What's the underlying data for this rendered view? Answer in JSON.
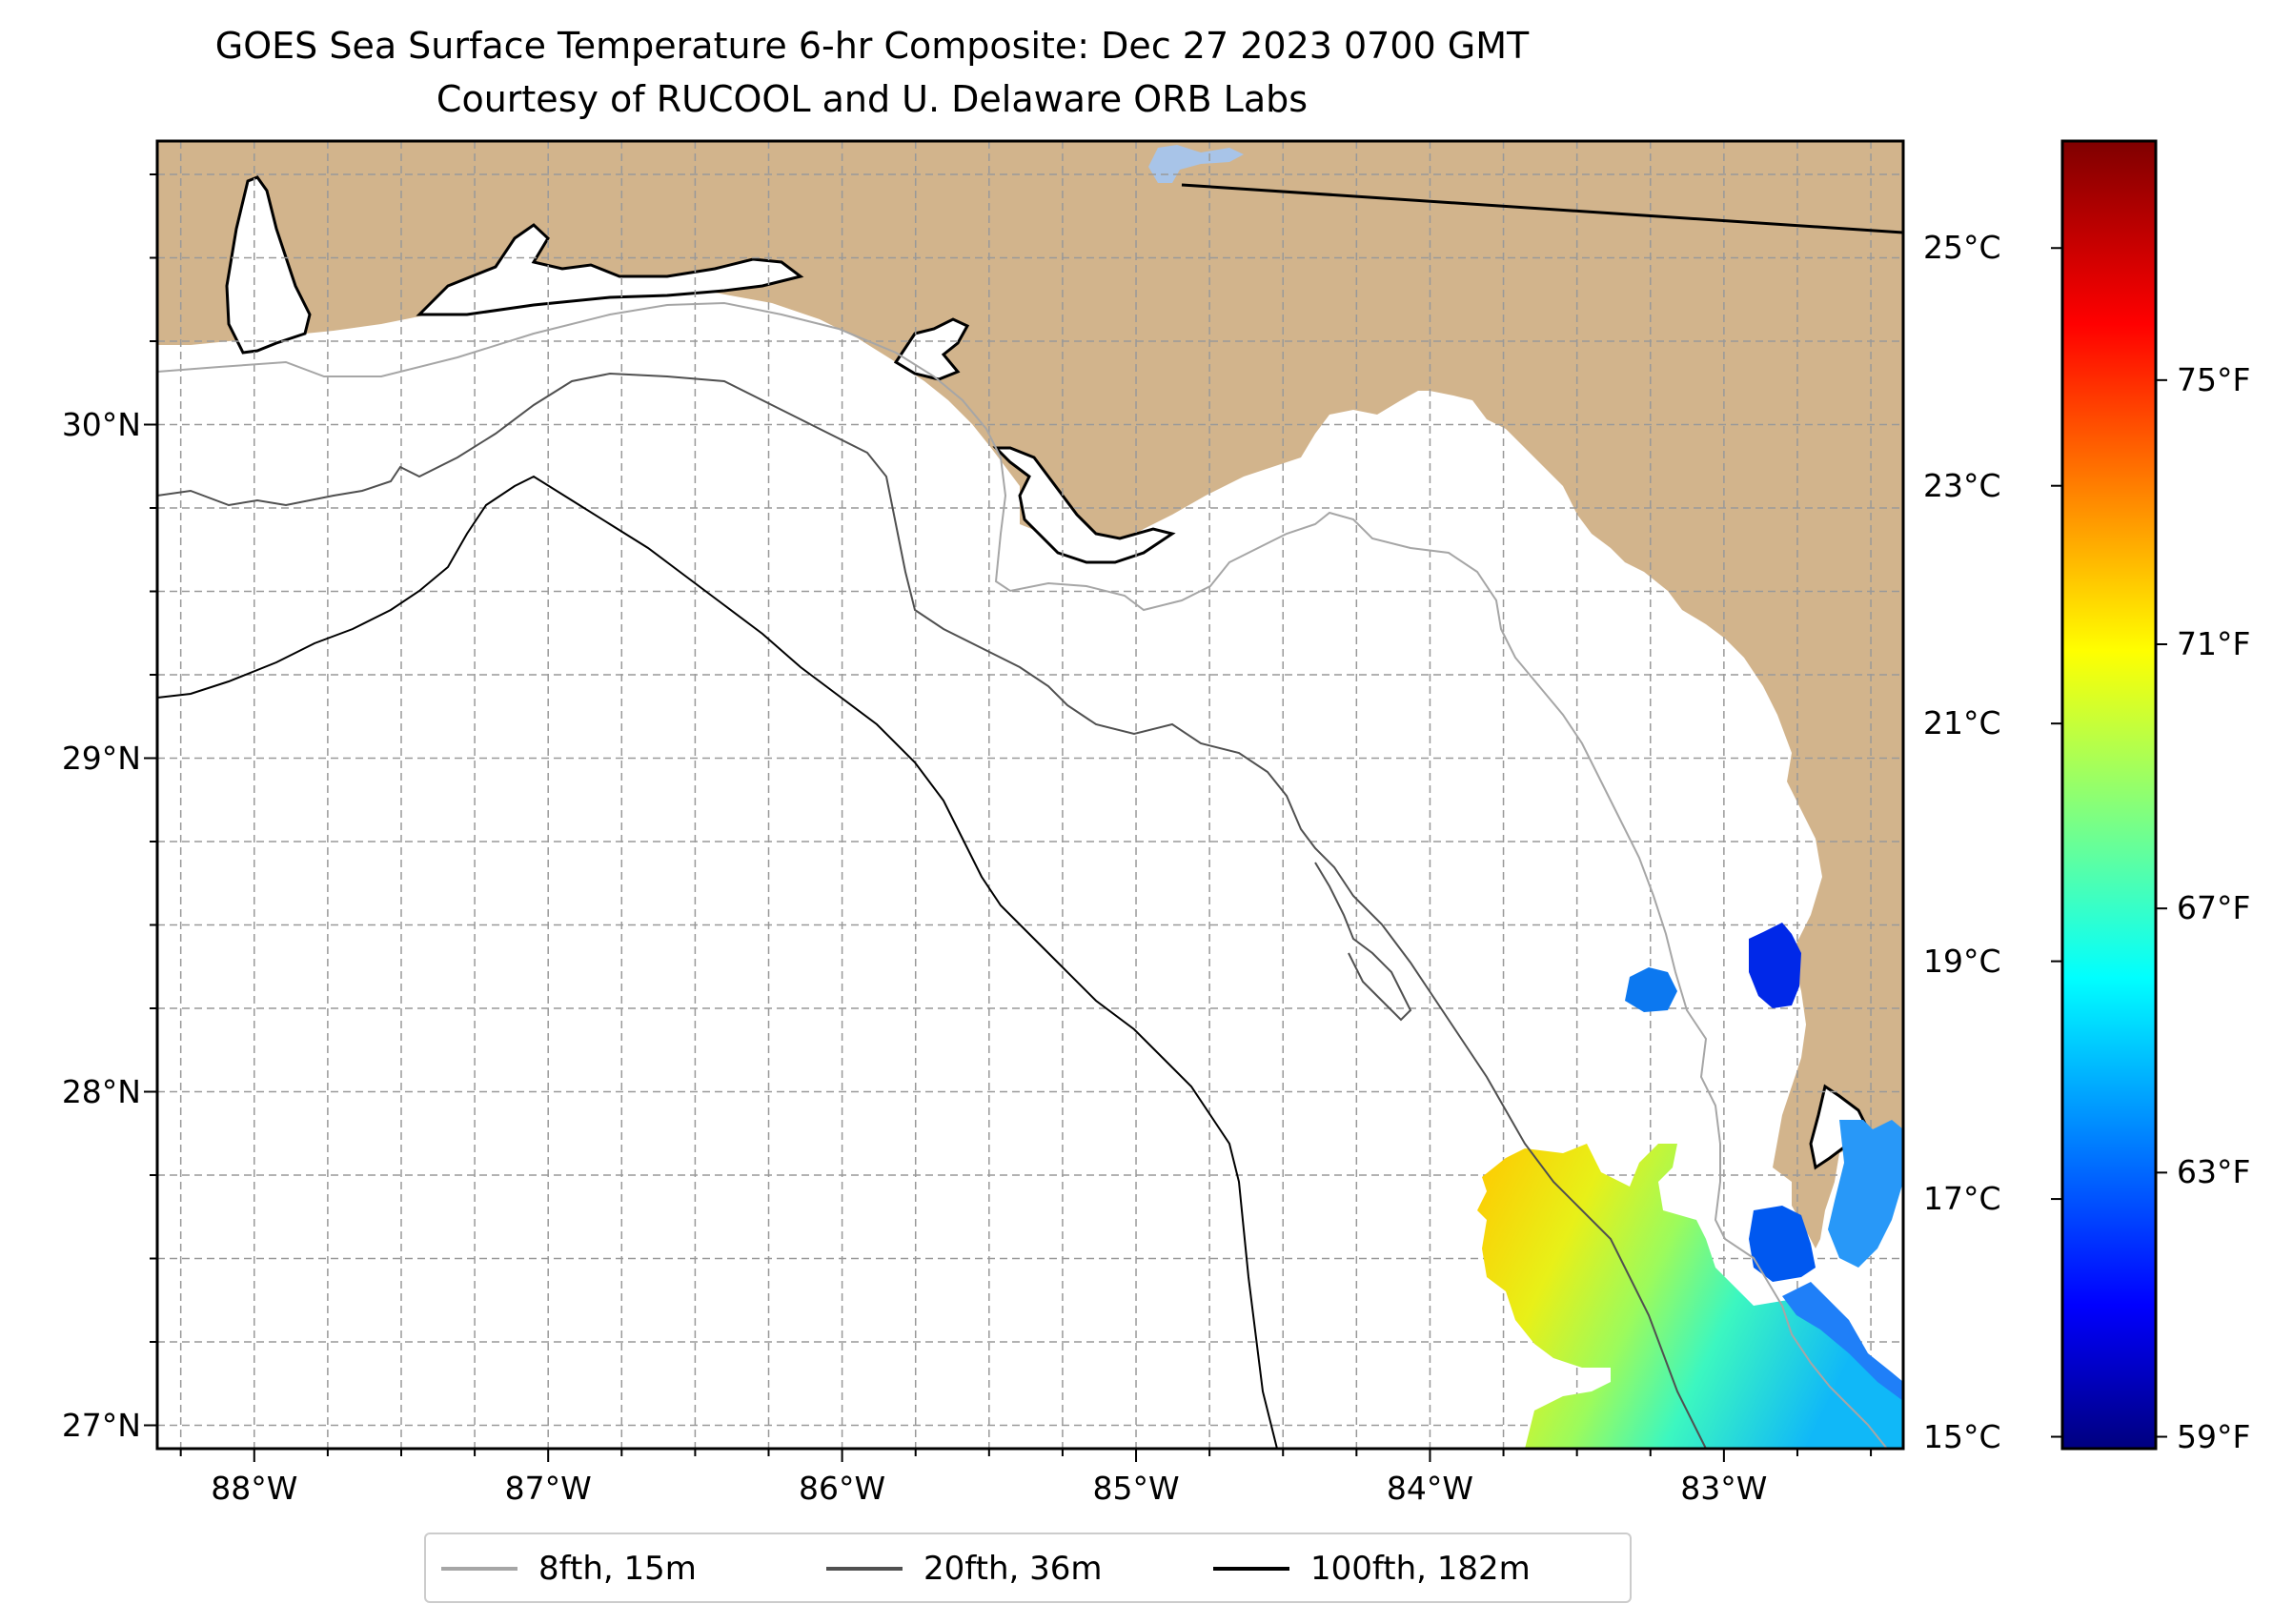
{
  "title": {
    "line1": "GOES Sea Surface Temperature 6-hr Composite: Dec 27 2023 0700 GMT",
    "line2": "Courtesy of RUCOOL and U. Delaware ORB Labs"
  },
  "map": {
    "extent_lon": [
      -88.33,
      -82.39
    ],
    "extent_lat": [
      26.93,
      30.85
    ],
    "land_color": "#d2b48c",
    "water_color": "#ffffff",
    "lon_labels": [
      "88°W",
      "87°W",
      "86°W",
      "85°W",
      "84°W",
      "83°W"
    ],
    "lon_values": [
      -88,
      -87,
      -86,
      -85,
      -84,
      -83
    ],
    "lat_labels": [
      "27°N",
      "28°N",
      "29°N",
      "30°N"
    ],
    "lat_values": [
      27,
      28,
      29,
      30
    ],
    "gridlines": "dashed"
  },
  "colorbar": {
    "colormap": "jet",
    "celsius_labels": [
      "15°C",
      "17°C",
      "19°C",
      "21°C",
      "23°C",
      "25°C"
    ],
    "celsius_values": [
      15,
      17,
      19,
      21,
      23,
      25
    ],
    "fahrenheit_labels": [
      "59°F",
      "63°F",
      "67°F",
      "71°F",
      "75°F"
    ],
    "fahrenheit_values": [
      59,
      63,
      67,
      71,
      75
    ],
    "range_c": [
      14.9,
      25.9
    ]
  },
  "legend": {
    "items": [
      {
        "label": "8fth, 15m",
        "color": "#a6a6a6"
      },
      {
        "label": "20fth, 36m",
        "color": "#505050"
      },
      {
        "label": "100fth, 182m",
        "color": "#000000"
      }
    ]
  }
}
